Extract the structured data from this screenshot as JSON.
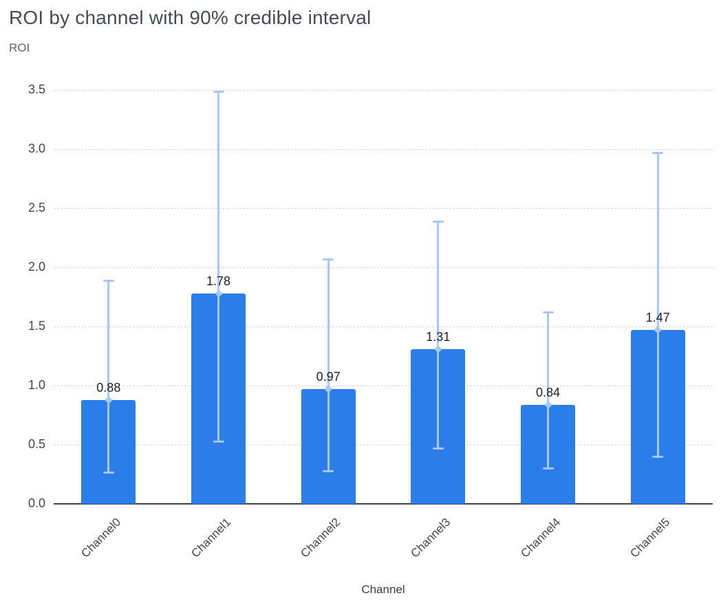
{
  "chart_data": {
    "type": "bar",
    "title": "ROI by channel with 90% credible interval",
    "ylabel": "ROI",
    "xlabel": "Channel",
    "categories": [
      "Channel0",
      "Channel1",
      "Channel2",
      "Channel3",
      "Channel4",
      "Channel5"
    ],
    "values": [
      0.88,
      1.78,
      0.97,
      1.31,
      0.84,
      1.47
    ],
    "value_labels": [
      "0.88",
      "1.78",
      "0.97",
      "1.31",
      "0.84",
      "1.47"
    ],
    "error_low": [
      0.27,
      0.53,
      0.28,
      0.47,
      0.3,
      0.4
    ],
    "error_high": [
      1.89,
      3.49,
      2.07,
      2.39,
      1.62,
      2.97
    ],
    "ylim": [
      0,
      3.5
    ],
    "yticks": [
      0.0,
      0.5,
      1.0,
      1.5,
      2.0,
      2.5,
      3.0,
      3.5
    ],
    "grid": "dashed-horizontal",
    "legend": "none",
    "bar_color": "#2b7de9",
    "error_color": "#a8c7fa",
    "title_color": "#464c54",
    "axis_text_color": "#444746"
  }
}
